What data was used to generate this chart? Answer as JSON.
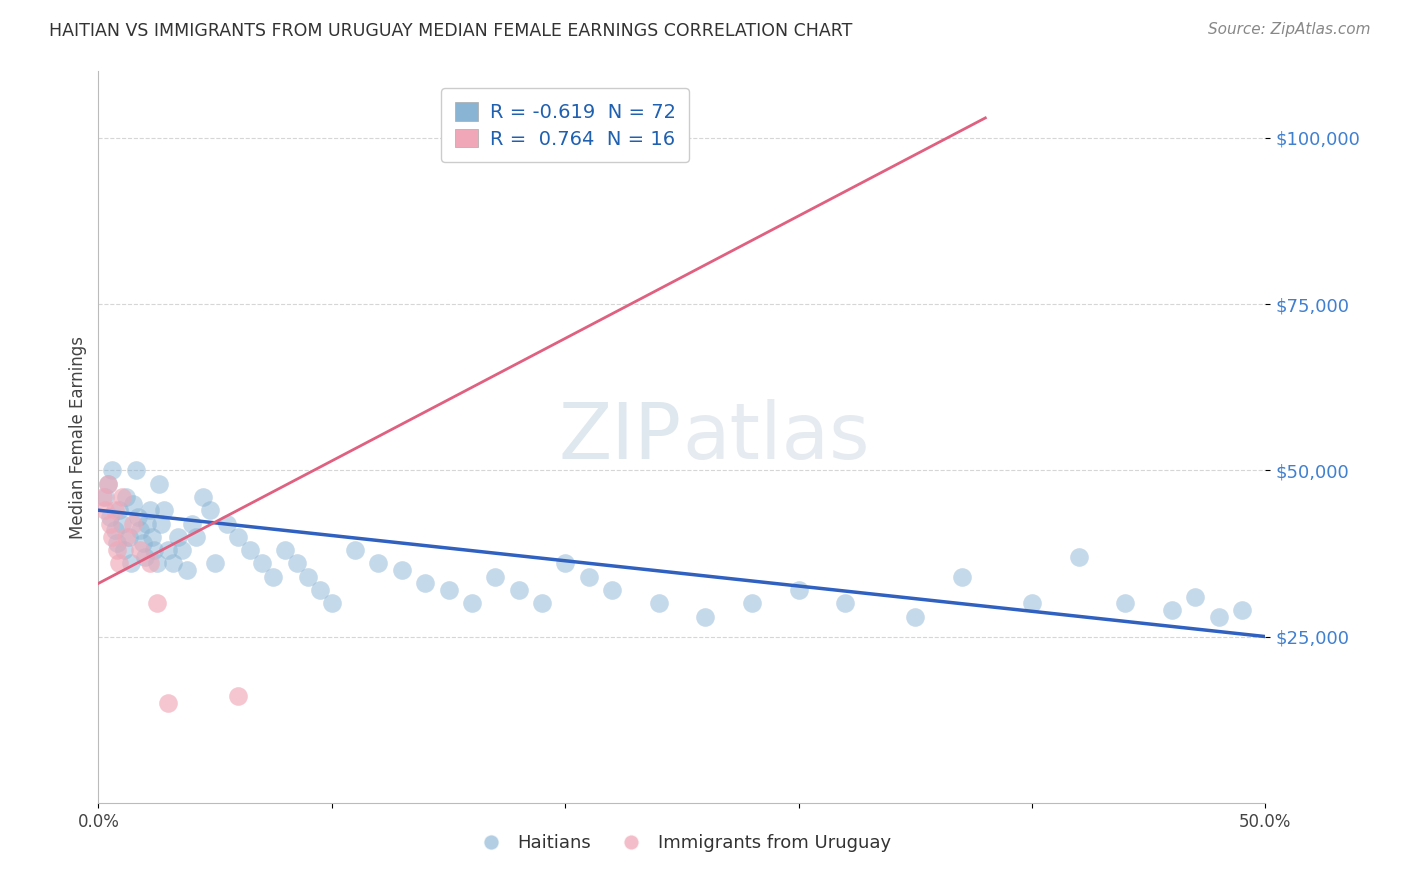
{
  "title": "HAITIAN VS IMMIGRANTS FROM URUGUAY MEDIAN FEMALE EARNINGS CORRELATION CHART",
  "source": "Source: ZipAtlas.com",
  "ylabel": "Median Female Earnings",
  "xlim": [
    0.0,
    0.5
  ],
  "ylim": [
    0,
    110000
  ],
  "yticks": [
    25000,
    50000,
    75000,
    100000
  ],
  "ytick_labels": [
    "$25,000",
    "$50,000",
    "$75,000",
    "$100,000"
  ],
  "xticks": [
    0.0,
    0.1,
    0.2,
    0.3,
    0.4,
    0.5
  ],
  "xtick_labels": [
    "0.0%",
    "",
    "",
    "",
    "",
    "50.0%"
  ],
  "legend_entry_blue": "R = -0.619  N = 72",
  "legend_entry_pink": "R =  0.764  N = 16",
  "legend_labels_bottom": [
    "Haitians",
    "Immigrants from Uruguay"
  ],
  "watermark_zip": "ZIP",
  "watermark_atlas": "atlas",
  "background_color": "#ffffff",
  "plot_background": "#ffffff",
  "blue_color": "#8ab4d4",
  "pink_color": "#f0a8b8",
  "blue_line_color": "#3060c0",
  "pink_line_color": "#e06080",
  "title_color": "#333333",
  "ytick_color": "#4080d0",
  "legend_text_color": "#2060b0",
  "source_color": "#888888",
  "blue_scatter_x": [
    0.003,
    0.004,
    0.005,
    0.006,
    0.007,
    0.008,
    0.009,
    0.01,
    0.011,
    0.012,
    0.013,
    0.014,
    0.015,
    0.016,
    0.017,
    0.018,
    0.019,
    0.02,
    0.021,
    0.022,
    0.023,
    0.024,
    0.025,
    0.026,
    0.027,
    0.028,
    0.03,
    0.032,
    0.034,
    0.036,
    0.038,
    0.04,
    0.042,
    0.045,
    0.048,
    0.05,
    0.055,
    0.06,
    0.065,
    0.07,
    0.075,
    0.08,
    0.085,
    0.09,
    0.095,
    0.1,
    0.11,
    0.12,
    0.13,
    0.14,
    0.15,
    0.16,
    0.17,
    0.18,
    0.19,
    0.2,
    0.21,
    0.22,
    0.24,
    0.26,
    0.28,
    0.3,
    0.32,
    0.35,
    0.37,
    0.4,
    0.42,
    0.44,
    0.46,
    0.47,
    0.48,
    0.49
  ],
  "blue_scatter_y": [
    46000,
    48000,
    43000,
    50000,
    41000,
    39000,
    44000,
    42000,
    38000,
    46000,
    40000,
    36000,
    45000,
    50000,
    43000,
    41000,
    39000,
    37000,
    42000,
    44000,
    40000,
    38000,
    36000,
    48000,
    42000,
    44000,
    38000,
    36000,
    40000,
    38000,
    35000,
    42000,
    40000,
    46000,
    44000,
    36000,
    42000,
    40000,
    38000,
    36000,
    34000,
    38000,
    36000,
    34000,
    32000,
    30000,
    38000,
    36000,
    35000,
    33000,
    32000,
    30000,
    34000,
    32000,
    30000,
    36000,
    34000,
    32000,
    30000,
    28000,
    30000,
    32000,
    30000,
    28000,
    34000,
    30000,
    37000,
    30000,
    29000,
    31000,
    28000,
    29000
  ],
  "pink_scatter_x": [
    0.002,
    0.003,
    0.004,
    0.005,
    0.006,
    0.007,
    0.008,
    0.009,
    0.01,
    0.012,
    0.015,
    0.018,
    0.022,
    0.025,
    0.03,
    0.06
  ],
  "pink_scatter_y": [
    46000,
    44000,
    48000,
    42000,
    40000,
    44000,
    38000,
    36000,
    46000,
    40000,
    42000,
    38000,
    36000,
    30000,
    15000,
    16000
  ],
  "blue_trend_x0": 0.0,
  "blue_trend_x1": 0.5,
  "blue_trend_y0": 44000,
  "blue_trend_y1": 25000,
  "pink_trend_x0": 0.0,
  "pink_trend_x1": 0.38,
  "pink_trend_y0": 33000,
  "pink_trend_y1": 103000
}
